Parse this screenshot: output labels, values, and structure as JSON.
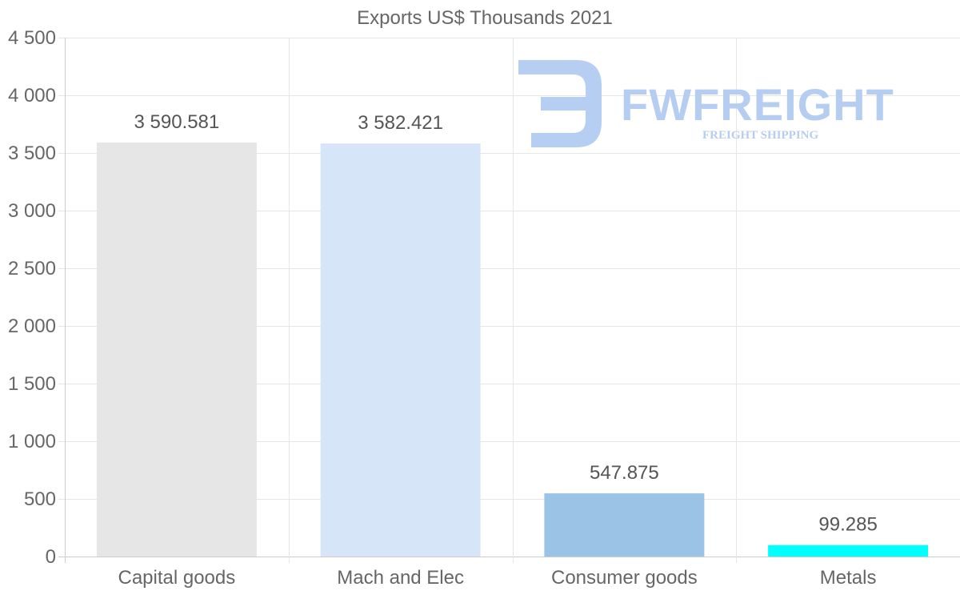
{
  "chart_data": {
    "type": "bar",
    "title": "Exports US$ Thousands 2021",
    "categories": [
      "Capital goods",
      "Mach and Elec",
      "Consumer goods",
      "Metals"
    ],
    "values": [
      3590.581,
      3582.421,
      547.875,
      99.285
    ],
    "value_labels": [
      "3 590.581",
      "3 582.421",
      "547.875",
      "99.285"
    ],
    "bar_colors": [
      "#e6e6e6",
      "#d6e6f8",
      "#9ac3e6",
      "#00ffff"
    ],
    "ylim": [
      0,
      4500
    ],
    "yticks": [
      0,
      500,
      1000,
      1500,
      2000,
      2500,
      3000,
      3500,
      4000,
      4500
    ],
    "ytick_labels": [
      "0",
      "500",
      "1 000",
      "1 500",
      "2 000",
      "2 500",
      "3 000",
      "3 500",
      "4 000",
      "4 500"
    ],
    "grid": true,
    "xlabel": "",
    "ylabel": ""
  },
  "watermark": {
    "brand": "FWFREIGHT",
    "tagline": "FREIGHT SHIPPING"
  }
}
